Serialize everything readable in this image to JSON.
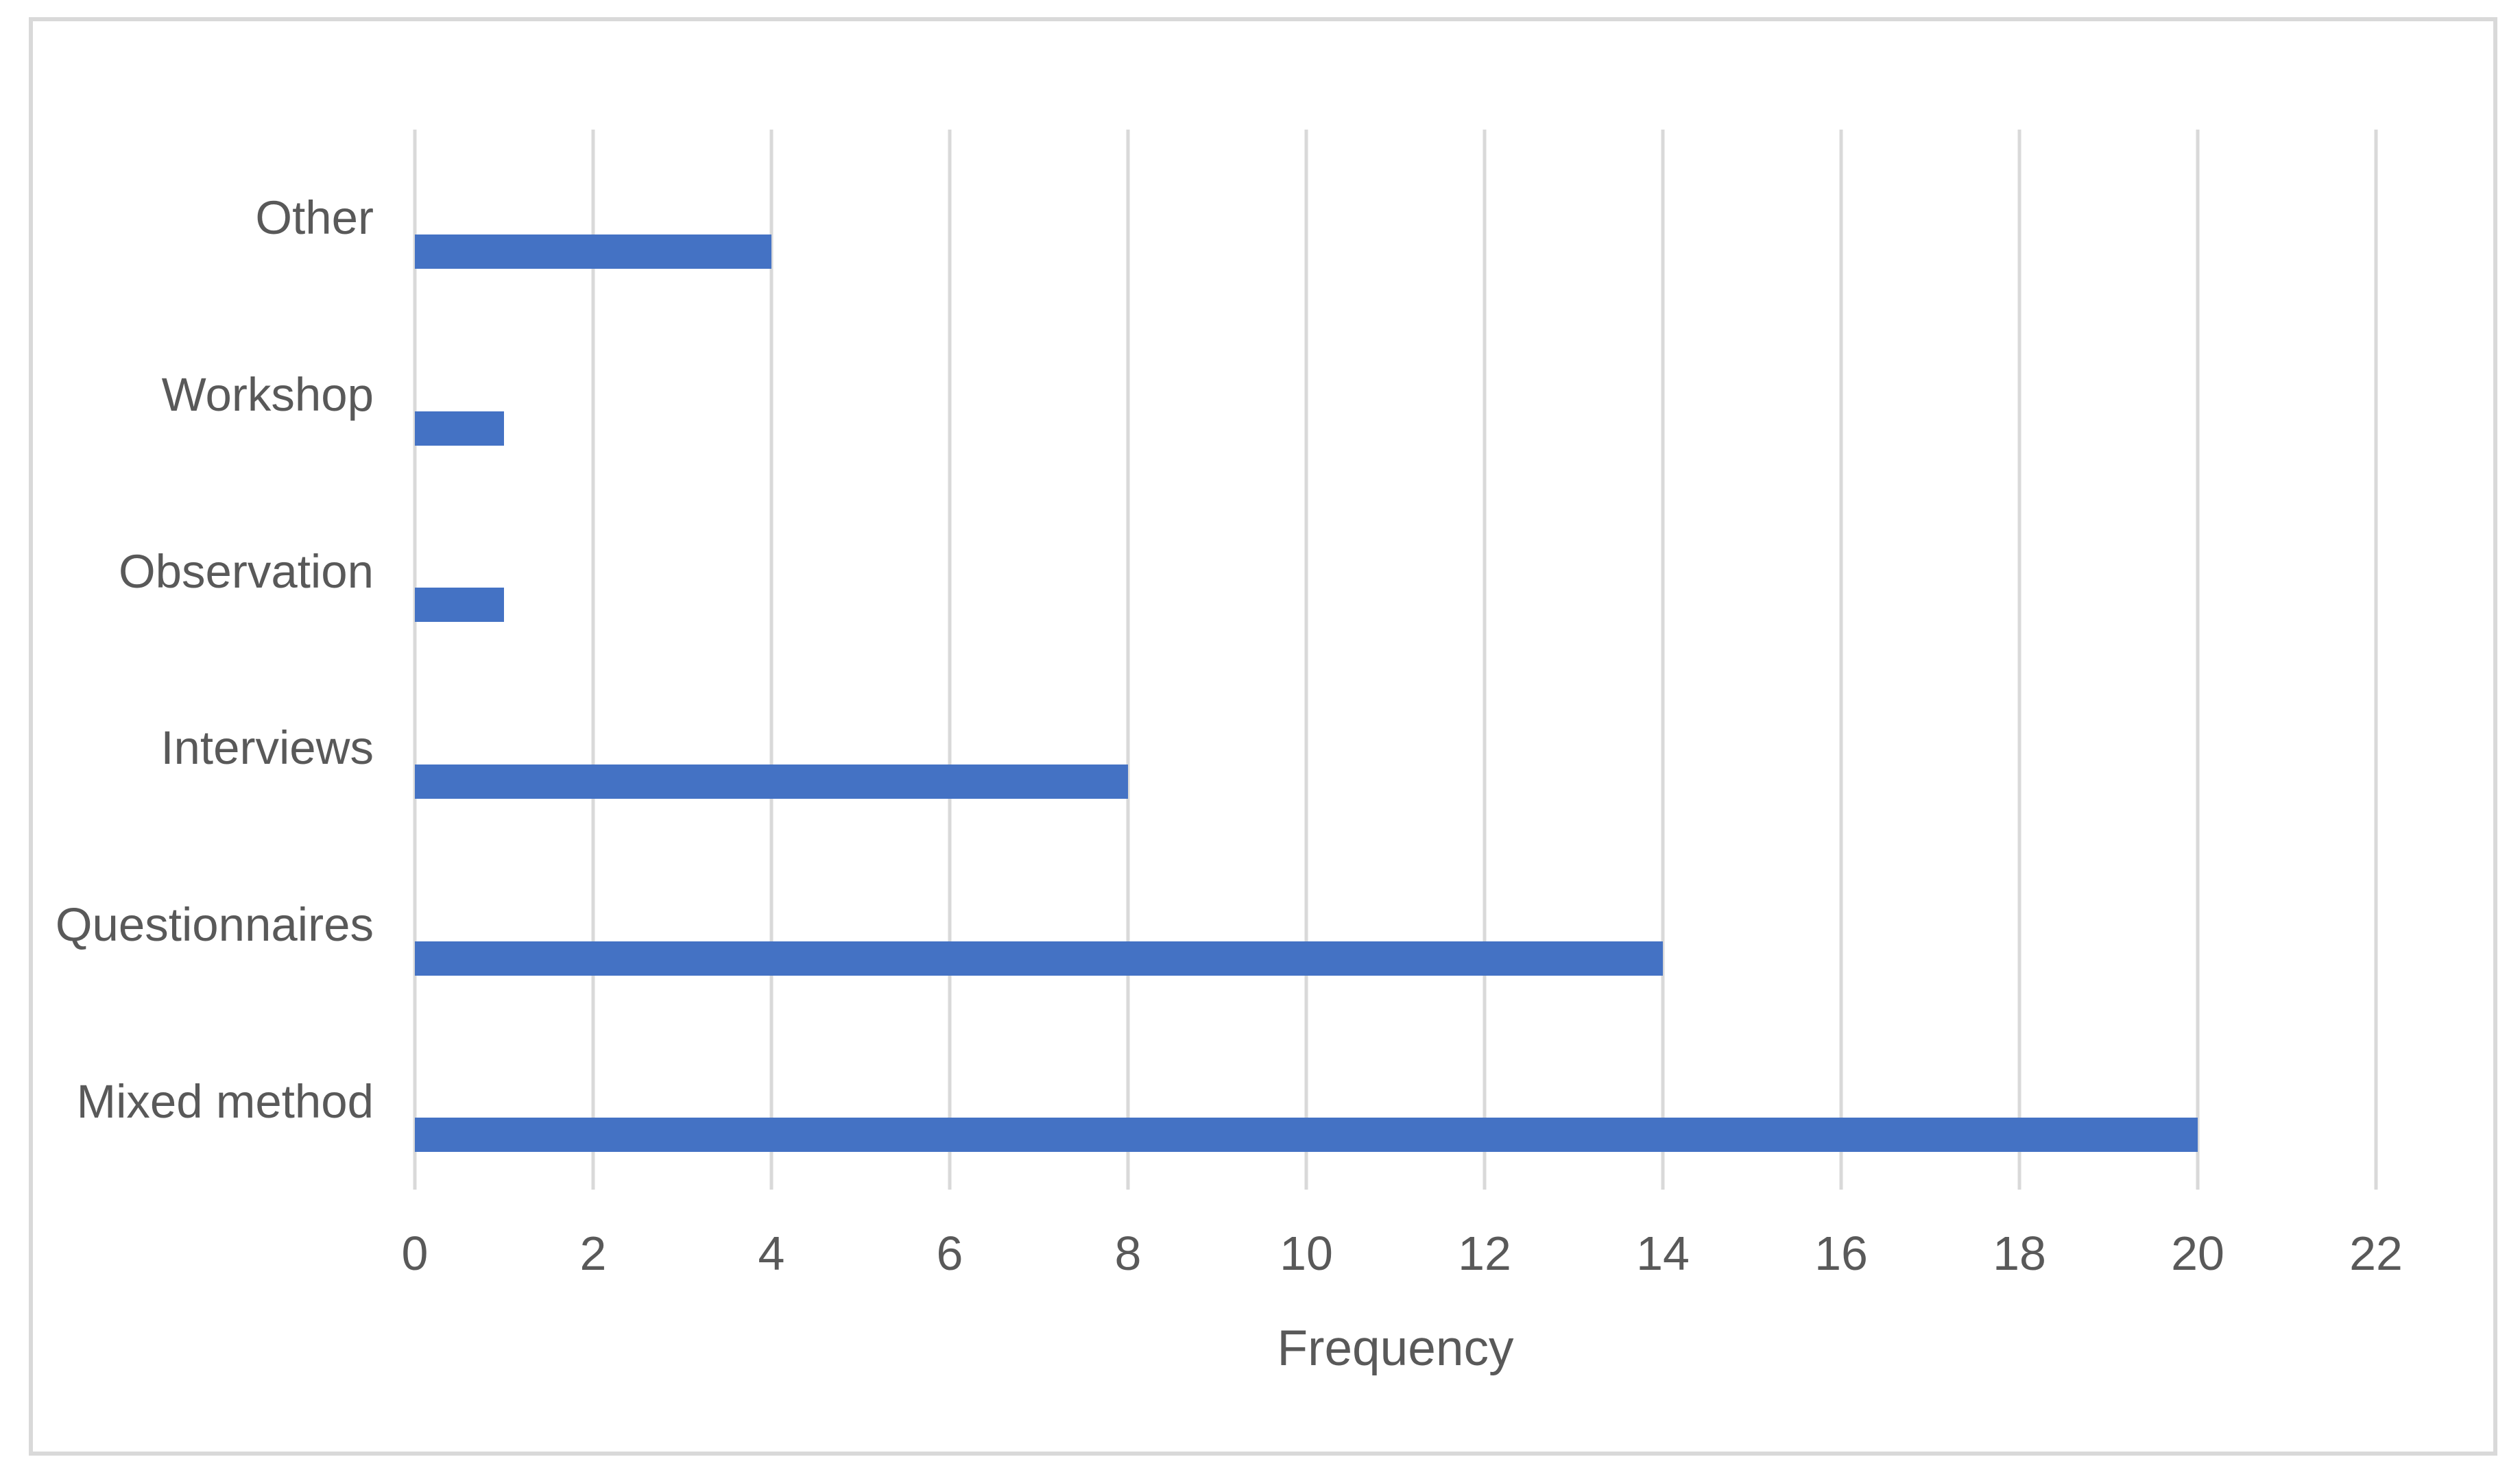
{
  "chart_data": {
    "type": "bar",
    "orientation": "horizontal",
    "categories": [
      "Other",
      "Workshop",
      "Observation",
      "Interviews",
      "Questionnaires",
      "Mixed method"
    ],
    "values": [
      4,
      1,
      1,
      8,
      14,
      20
    ],
    "xlabel": "Frequency",
    "ylabel": "",
    "xlim": [
      0,
      22
    ],
    "xticks": [
      0,
      2,
      4,
      6,
      8,
      10,
      12,
      14,
      16,
      18,
      20,
      22
    ],
    "grid": true,
    "legend_position": "none",
    "colors": {
      "bar": "#4472c4",
      "text": "#595959",
      "gridline": "#d9d9d9",
      "border": "#d9d9d9",
      "background": "#ffffff"
    }
  }
}
